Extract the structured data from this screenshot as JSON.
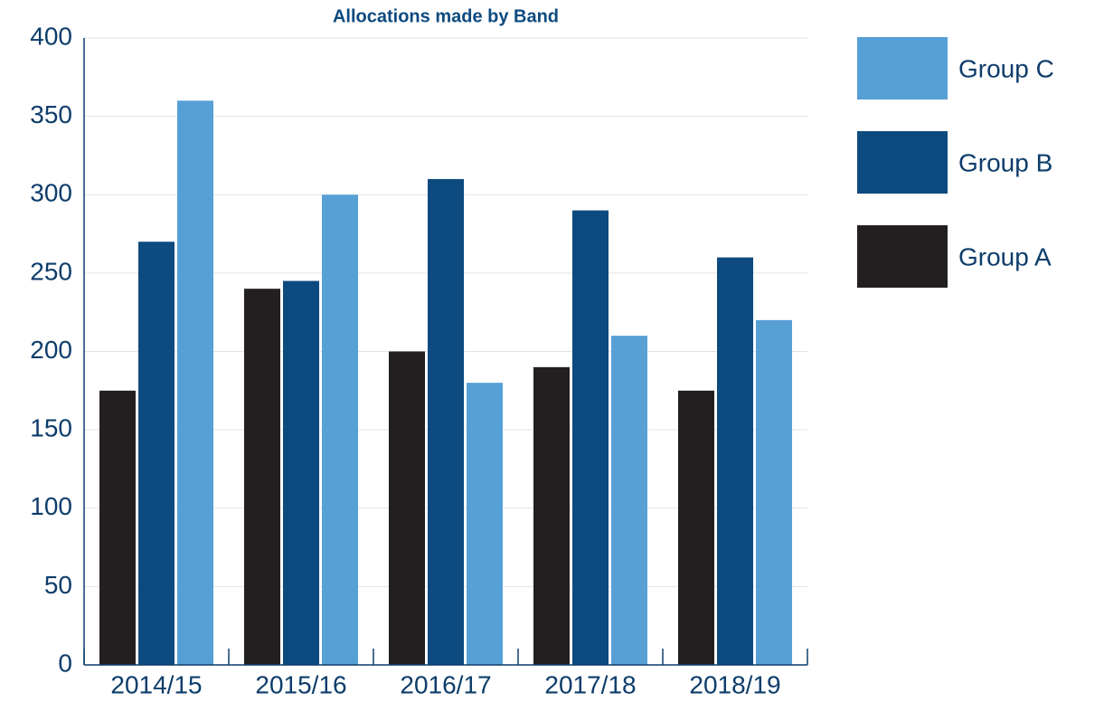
{
  "chart_data": {
    "type": "bar",
    "title": "Allocations made by Band",
    "categories": [
      "2014/15",
      "2015/16",
      "2016/17",
      "2017/18",
      "2018/19"
    ],
    "series": [
      {
        "name": "Group A",
        "color": "#231f20",
        "values": [
          175,
          240,
          200,
          190,
          175
        ]
      },
      {
        "name": "Group B",
        "color": "#0d4a7f",
        "values": [
          270,
          245,
          310,
          290,
          260
        ]
      },
      {
        "name": "Group C",
        "color": "#56a0d6",
        "values": [
          360,
          300,
          180,
          210,
          220
        ]
      }
    ],
    "ylim": [
      0,
      400
    ],
    "yticks": [
      0,
      50,
      100,
      150,
      200,
      250,
      300,
      350,
      400
    ],
    "grid": true,
    "legend": "right"
  }
}
